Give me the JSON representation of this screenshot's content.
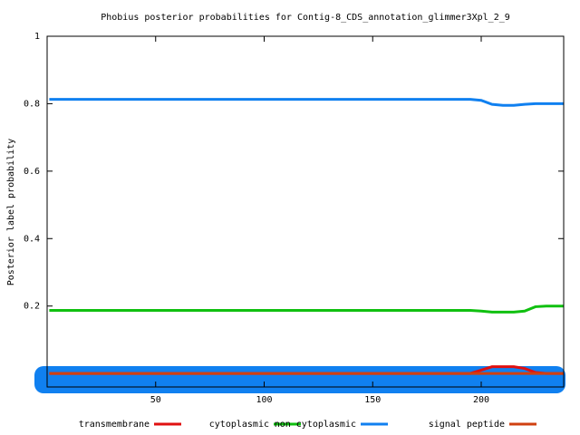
{
  "chart_data": {
    "type": "line",
    "title": "Phobius posterior probabilities for Contig-8_CDS_annotation_glimmer3Xpl_2_9",
    "ylabel": "Posterior label probability",
    "x": [
      1,
      195,
      200,
      205,
      210,
      215,
      220,
      225,
      230,
      238
    ],
    "series": [
      {
        "name": "transmembrane",
        "color": "#e01010",
        "values": [
          0,
          0,
          0.01,
          0.02,
          0.02,
          0.02,
          0.015,
          0.003,
          0,
          0
        ]
      },
      {
        "name": "cytoplasmic",
        "color": "#10c010",
        "values": [
          0.187,
          0.187,
          0.185,
          0.182,
          0.182,
          0.182,
          0.185,
          0.198,
          0.2,
          0.2
        ]
      },
      {
        "name": "non cytoplasmic",
        "color": "#1080f0",
        "values": [
          0.813,
          0.813,
          0.81,
          0.798,
          0.795,
          0.795,
          0.798,
          0.8,
          0.8,
          0.8
        ]
      },
      {
        "name": "signal peptide",
        "color": "#d04010",
        "values": [
          0,
          0,
          0,
          0,
          0,
          0,
          0,
          0,
          0,
          0
        ]
      }
    ],
    "xlim": [
      0,
      238
    ],
    "ylim": [
      -0.04,
      1
    ],
    "xticks": [
      50,
      100,
      150,
      200
    ],
    "yticks": [
      0.2,
      0.4,
      0.6,
      0.8,
      1
    ]
  }
}
